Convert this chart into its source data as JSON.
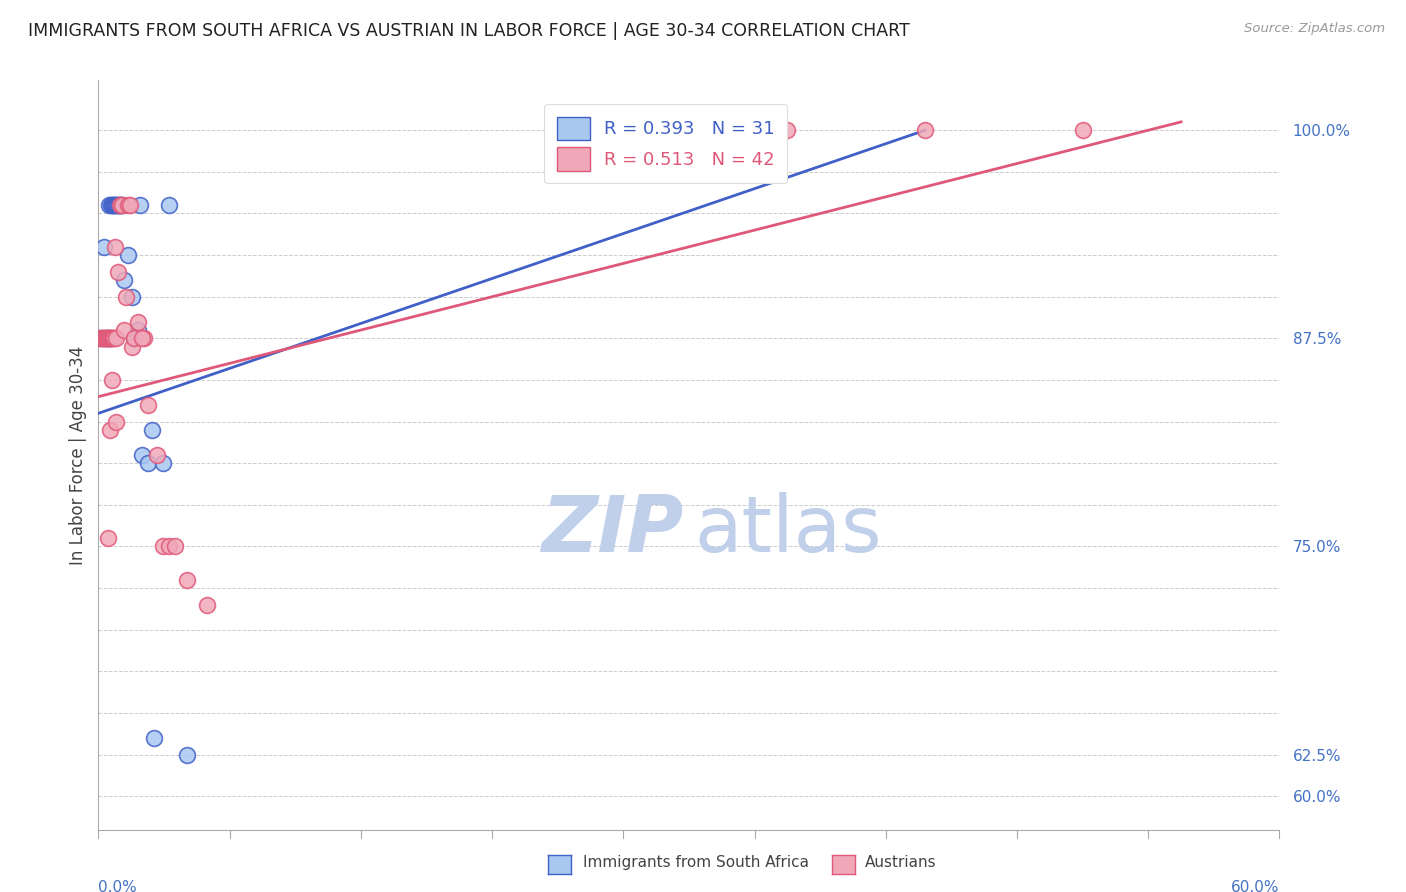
{
  "title": "IMMIGRANTS FROM SOUTH AFRICA VS AUSTRIAN IN LABOR FORCE | AGE 30-34 CORRELATION CHART",
  "source": "Source: ZipAtlas.com",
  "ylabel_label": "In Labor Force | Age 30-34",
  "xlim": [
    0.0,
    60.0
  ],
  "ylim": [
    58.0,
    103.0
  ],
  "blue_R": 0.393,
  "blue_N": 31,
  "pink_R": 0.513,
  "pink_N": 42,
  "blue_color": "#A8C8F0",
  "pink_color": "#F0A8B8",
  "blue_line_color": "#4060C8",
  "pink_line_color": "#E05878",
  "watermark_zip_color": "#C0CFEA",
  "watermark_atlas_color": "#C0CFEA",
  "ytick_positions": [
    60.0,
    62.5,
    65.0,
    67.5,
    70.0,
    72.5,
    75.0,
    77.5,
    80.0,
    82.5,
    85.0,
    87.5,
    90.0,
    92.5,
    95.0,
    97.5,
    100.0
  ],
  "ytick_shown": {
    "60.0": "60.0%",
    "62.5": "62.5%",
    "75.0": "75.0%",
    "87.5": "87.5%",
    "100.0": "100.0%"
  },
  "blue_x": [
    0.15,
    0.55,
    0.65,
    0.7,
    0.75,
    0.8,
    0.85,
    0.9,
    0.95,
    1.0,
    1.05,
    1.1,
    1.15,
    1.2,
    1.3,
    1.5,
    1.7,
    2.0,
    2.1,
    2.2,
    2.5,
    2.7,
    3.3,
    3.6,
    0.3,
    0.4,
    0.5,
    0.6,
    1.8,
    2.8,
    4.5
  ],
  "blue_y": [
    87.5,
    95.5,
    95.5,
    95.5,
    95.5,
    95.5,
    95.5,
    95.5,
    95.5,
    95.5,
    95.5,
    95.5,
    95.5,
    95.5,
    91.0,
    92.5,
    90.0,
    88.0,
    95.5,
    80.5,
    80.0,
    82.0,
    80.0,
    95.5,
    93.0,
    87.5,
    87.5,
    87.5,
    87.5,
    63.5,
    62.5
  ],
  "pink_x": [
    0.1,
    0.2,
    0.25,
    0.3,
    0.35,
    0.4,
    0.45,
    0.5,
    0.55,
    0.6,
    0.65,
    0.7,
    0.75,
    0.8,
    0.85,
    0.9,
    1.0,
    1.1,
    1.2,
    1.3,
    1.5,
    1.6,
    1.7,
    1.8,
    2.0,
    2.3,
    2.5,
    3.0,
    3.3,
    3.6,
    3.9,
    4.5,
    5.5,
    35.0,
    42.0,
    50.0,
    0.5,
    0.6,
    0.7,
    0.9,
    1.4,
    2.2
  ],
  "pink_y": [
    87.5,
    87.5,
    87.5,
    87.5,
    87.5,
    87.5,
    87.5,
    87.5,
    87.5,
    87.5,
    87.5,
    87.5,
    87.5,
    87.5,
    93.0,
    87.5,
    91.5,
    95.5,
    95.5,
    88.0,
    95.5,
    95.5,
    87.0,
    87.5,
    88.5,
    87.5,
    83.5,
    80.5,
    75.0,
    75.0,
    75.0,
    73.0,
    71.5,
    100.0,
    100.0,
    100.0,
    75.5,
    82.0,
    85.0,
    82.5,
    90.0,
    87.5
  ],
  "blue_line_x0": 0.0,
  "blue_line_x1": 42.0,
  "blue_line_y0": 83.0,
  "blue_line_y1": 100.0,
  "pink_line_x0": 0.0,
  "pink_line_x1": 55.0,
  "pink_line_y0": 84.0,
  "pink_line_y1": 100.5
}
